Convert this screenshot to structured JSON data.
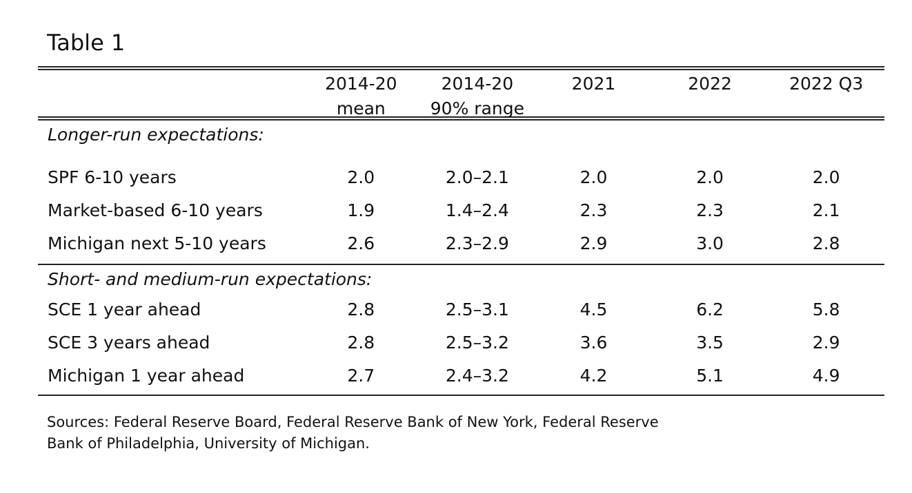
{
  "title": "Table 1",
  "columns": [
    {
      "line1": "2014-20",
      "line2": "mean"
    },
    {
      "line1": "2014-20",
      "line2": "90% range"
    },
    {
      "line1": "2021",
      "line2": ""
    },
    {
      "line1": "2022",
      "line2": ""
    },
    {
      "line1": "2022 Q3",
      "line2": ""
    }
  ],
  "sections": [
    {
      "heading": "Longer-run expectations:",
      "rows": [
        {
          "label": "SPF 6-10 years",
          "values": [
            "2.0",
            "2.0–2.1",
            "2.0",
            "2.0",
            "2.0"
          ]
        },
        {
          "label": "Market-based 6-10 years",
          "values": [
            "1.9",
            "1.4–2.4",
            "2.3",
            "2.3",
            "2.1"
          ]
        },
        {
          "label": "Michigan next 5-10 years",
          "values": [
            "2.6",
            "2.3–2.9",
            "2.9",
            "3.0",
            "2.8"
          ]
        }
      ]
    },
    {
      "heading": "Short- and medium-run expectations:",
      "rows": [
        {
          "label": "SCE 1 year ahead",
          "values": [
            "2.8",
            "2.5–3.1",
            "4.5",
            "6.2",
            "5.8"
          ]
        },
        {
          "label": "SCE 3 years ahead",
          "values": [
            "2.8",
            "2.5–3.2",
            "3.6",
            "3.5",
            "2.9"
          ]
        },
        {
          "label": "Michigan 1 year ahead",
          "values": [
            "2.7",
            "2.4–3.2",
            "4.2",
            "5.1",
            "4.9"
          ]
        }
      ]
    }
  ],
  "sources": "Sources: Federal Reserve Board, Federal Reserve Bank of New York, Federal Reserve Bank of Philadelphia, University of Michigan."
}
